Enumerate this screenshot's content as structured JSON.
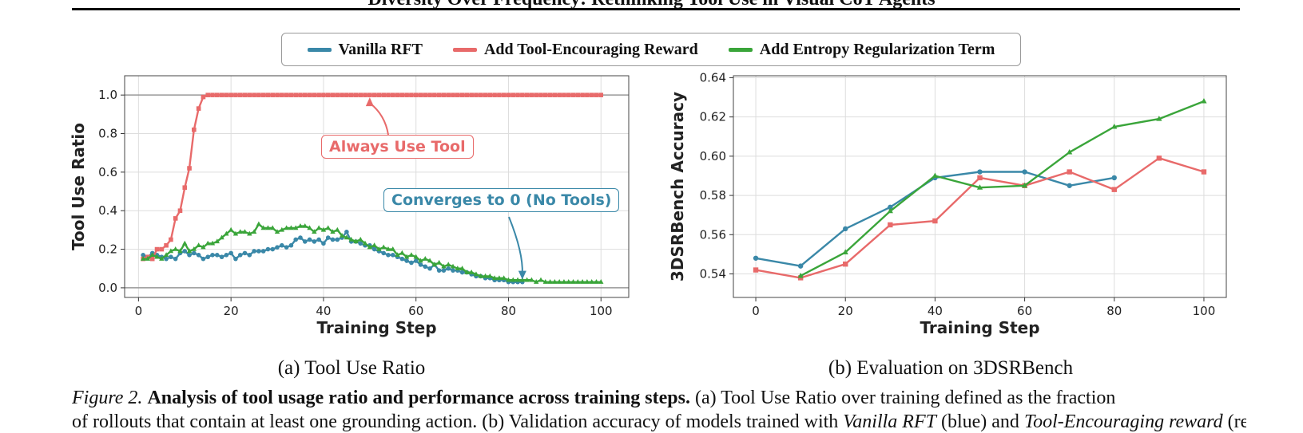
{
  "header": {
    "title": "Diversity Over Frequency: Rethinking Tool Use in Visual CoT Agents"
  },
  "legend": {
    "items": [
      {
        "label": "Vanilla RFT",
        "color": "#3a88a8"
      },
      {
        "label": "Add Tool-Encouraging Reward",
        "color": "#e86a6a"
      },
      {
        "label": "Add Entropy Regularization Term",
        "color": "#3aa53a"
      }
    ]
  },
  "chart_data": [
    {
      "type": "line",
      "subcaption": "(a) Tool Use Ratio",
      "xlabel": "Training Step",
      "ylabel": "Tool Use Ratio",
      "xlim": [
        -3,
        106
      ],
      "ylim": [
        -0.05,
        1.1
      ],
      "xticks": [
        0,
        20,
        40,
        60,
        80,
        100
      ],
      "yticks": [
        "0.0",
        "0.2",
        "0.4",
        "0.6",
        "0.8",
        "1.0"
      ],
      "grid": true,
      "annotations": [
        {
          "text": "Always Use Tool",
          "color": "#e86a6a",
          "arrow_to": [
            50,
            1.0
          ]
        },
        {
          "text": "Converges to 0 (No Tools)",
          "color": "#3a88a8",
          "arrow_to": [
            83,
            0.03
          ]
        }
      ],
      "series": [
        {
          "name": "Vanilla RFT",
          "color": "#3a88a8",
          "marker": "circle",
          "x": [
            1,
            2,
            3,
            4,
            5,
            6,
            7,
            8,
            9,
            10,
            11,
            12,
            13,
            14,
            15,
            16,
            17,
            18,
            19,
            20,
            21,
            22,
            23,
            24,
            25,
            26,
            27,
            28,
            29,
            30,
            31,
            32,
            33,
            34,
            35,
            36,
            37,
            38,
            39,
            40,
            41,
            42,
            43,
            44,
            45,
            46,
            47,
            48,
            49,
            50,
            51,
            52,
            53,
            54,
            55,
            56,
            57,
            58,
            59,
            60,
            61,
            62,
            63,
            64,
            65,
            66,
            67,
            68,
            69,
            70,
            71,
            72,
            73,
            74,
            75,
            76,
            77,
            78,
            79,
            80,
            81,
            82,
            83
          ],
          "y": [
            0.17,
            0.16,
            0.18,
            0.17,
            0.16,
            0.15,
            0.16,
            0.15,
            0.18,
            0.19,
            0.17,
            0.18,
            0.17,
            0.15,
            0.16,
            0.17,
            0.17,
            0.16,
            0.17,
            0.18,
            0.15,
            0.17,
            0.18,
            0.17,
            0.19,
            0.19,
            0.19,
            0.2,
            0.2,
            0.21,
            0.22,
            0.21,
            0.22,
            0.25,
            0.26,
            0.24,
            0.25,
            0.24,
            0.25,
            0.23,
            0.26,
            0.25,
            0.25,
            0.26,
            0.29,
            0.24,
            0.24,
            0.23,
            0.22,
            0.22,
            0.2,
            0.19,
            0.18,
            0.17,
            0.17,
            0.16,
            0.15,
            0.14,
            0.13,
            0.14,
            0.12,
            0.11,
            0.1,
            0.12,
            0.09,
            0.09,
            0.1,
            0.09,
            0.09,
            0.08,
            0.08,
            0.07,
            0.06,
            0.06,
            0.05,
            0.05,
            0.04,
            0.04,
            0.04,
            0.03,
            0.03,
            0.03,
            0.03
          ]
        },
        {
          "name": "Add Tool-Encouraging Reward",
          "color": "#e86a6a",
          "marker": "square",
          "x": [
            1,
            2,
            3,
            4,
            5,
            6,
            7,
            8,
            9,
            10,
            11,
            12,
            13,
            14,
            15,
            16,
            17,
            18,
            19,
            20,
            21,
            22,
            23,
            24,
            25,
            26,
            27,
            28,
            29,
            30,
            31,
            32,
            33,
            34,
            35,
            36,
            37,
            38,
            39,
            40,
            41,
            42,
            43,
            44,
            45,
            46,
            47,
            48,
            49,
            50,
            51,
            52,
            53,
            54,
            55,
            56,
            57,
            58,
            59,
            60,
            61,
            62,
            63,
            64,
            65,
            66,
            67,
            68,
            69,
            70,
            71,
            72,
            73,
            74,
            75,
            76,
            77,
            78,
            79,
            80,
            81,
            82,
            83,
            84,
            85,
            86,
            87,
            88,
            89,
            90,
            91,
            92,
            93,
            94,
            95,
            96,
            97,
            98,
            99,
            100
          ],
          "y": [
            0.15,
            0.16,
            0.15,
            0.2,
            0.2,
            0.22,
            0.25,
            0.36,
            0.4,
            0.52,
            0.62,
            0.82,
            0.93,
            0.99,
            1.0,
            1.0,
            1.0,
            1.0,
            1.0,
            1.0,
            1.0,
            1.0,
            1.0,
            1.0,
            1.0,
            1.0,
            1.0,
            1.0,
            1.0,
            1.0,
            1.0,
            1.0,
            1.0,
            1.0,
            1.0,
            1.0,
            1.0,
            1.0,
            1.0,
            1.0,
            1.0,
            1.0,
            1.0,
            1.0,
            1.0,
            1.0,
            1.0,
            1.0,
            1.0,
            1.0,
            1.0,
            1.0,
            1.0,
            1.0,
            1.0,
            1.0,
            1.0,
            1.0,
            1.0,
            1.0,
            1.0,
            1.0,
            1.0,
            1.0,
            1.0,
            1.0,
            1.0,
            1.0,
            1.0,
            1.0,
            1.0,
            1.0,
            1.0,
            1.0,
            1.0,
            1.0,
            1.0,
            1.0,
            1.0,
            1.0,
            1.0,
            1.0,
            1.0,
            1.0,
            1.0,
            1.0,
            1.0,
            1.0,
            1.0,
            1.0,
            1.0,
            1.0,
            1.0,
            1.0,
            1.0,
            1.0,
            1.0,
            1.0,
            1.0,
            1.0
          ]
        },
        {
          "name": "Add Entropy Regularization Term",
          "color": "#3aa53a",
          "marker": "triangle",
          "x": [
            1,
            2,
            3,
            4,
            5,
            6,
            7,
            8,
            9,
            10,
            11,
            12,
            13,
            14,
            15,
            16,
            17,
            18,
            19,
            20,
            21,
            22,
            23,
            24,
            25,
            26,
            27,
            28,
            29,
            30,
            31,
            32,
            33,
            34,
            35,
            36,
            37,
            38,
            39,
            40,
            41,
            42,
            43,
            44,
            45,
            46,
            47,
            48,
            49,
            50,
            51,
            52,
            53,
            54,
            55,
            56,
            57,
            58,
            59,
            60,
            61,
            62,
            63,
            64,
            65,
            66,
            67,
            68,
            69,
            70,
            71,
            72,
            73,
            74,
            75,
            76,
            77,
            78,
            79,
            80,
            81,
            82,
            83,
            84,
            85,
            86,
            87,
            88,
            89,
            90,
            91,
            92,
            93,
            94,
            95,
            96,
            97,
            98,
            99,
            100
          ],
          "y": [
            0.15,
            0.15,
            0.17,
            0.16,
            0.15,
            0.17,
            0.19,
            0.2,
            0.19,
            0.23,
            0.19,
            0.2,
            0.22,
            0.21,
            0.23,
            0.23,
            0.24,
            0.26,
            0.28,
            0.3,
            0.28,
            0.29,
            0.29,
            0.28,
            0.29,
            0.33,
            0.31,
            0.31,
            0.31,
            0.29,
            0.3,
            0.31,
            0.31,
            0.31,
            0.32,
            0.32,
            0.31,
            0.29,
            0.31,
            0.3,
            0.31,
            0.29,
            0.3,
            0.27,
            0.26,
            0.25,
            0.24,
            0.25,
            0.23,
            0.21,
            0.22,
            0.2,
            0.21,
            0.2,
            0.2,
            0.17,
            0.18,
            0.16,
            0.17,
            0.16,
            0.14,
            0.15,
            0.14,
            0.12,
            0.13,
            0.11,
            0.12,
            0.11,
            0.1,
            0.1,
            0.08,
            0.08,
            0.07,
            0.06,
            0.06,
            0.06,
            0.05,
            0.05,
            0.05,
            0.04,
            0.04,
            0.04,
            0.04,
            0.04,
            0.04,
            0.03,
            0.04,
            0.03,
            0.03,
            0.03,
            0.03,
            0.03,
            0.03,
            0.03,
            0.03,
            0.03,
            0.03,
            0.03,
            0.03,
            0.03
          ]
        }
      ]
    },
    {
      "type": "line",
      "subcaption": "(b) Evaluation on 3DSRBench",
      "xlabel": "Training Step",
      "ylabel": "3DSRBench Accuracy",
      "xlim": [
        -5,
        105
      ],
      "ylim": [
        0.528,
        0.641
      ],
      "xticks": [
        0,
        20,
        40,
        60,
        80,
        100
      ],
      "yticks": [
        "0.54",
        "0.56",
        "0.58",
        "0.60",
        "0.62",
        "0.64"
      ],
      "grid": true,
      "series": [
        {
          "name": "Vanilla RFT",
          "color": "#3a88a8",
          "marker": "circle",
          "x": [
            0,
            10,
            20,
            30,
            40,
            50,
            60,
            70,
            80
          ],
          "y": [
            0.548,
            0.544,
            0.563,
            0.574,
            0.589,
            0.592,
            0.592,
            0.585,
            0.589
          ]
        },
        {
          "name": "Add Tool-Encouraging Reward",
          "color": "#e86a6a",
          "marker": "square",
          "x": [
            0,
            10,
            20,
            30,
            40,
            50,
            60,
            70,
            80,
            90,
            100
          ],
          "y": [
            0.542,
            0.538,
            0.545,
            0.565,
            0.567,
            0.589,
            0.585,
            0.592,
            0.583,
            0.599,
            0.592
          ]
        },
        {
          "name": "Add Entropy Regularization Term",
          "color": "#3aa53a",
          "marker": "triangle",
          "x": [
            10,
            20,
            30,
            40,
            50,
            60,
            70,
            80,
            90,
            100
          ],
          "y": [
            0.539,
            0.551,
            0.572,
            0.59,
            0.584,
            0.585,
            0.602,
            0.615,
            0.619,
            0.628
          ]
        }
      ]
    }
  ],
  "figure_caption": {
    "label": "Figure 2.",
    "bold": "Analysis of tool usage ratio and performance across training steps.",
    "rest": "(a) Tool Use Ratio over training defined as the fraction",
    "line2_a": "of rollouts that contain at least one grounding action. (b) Validation accuracy of models trained with",
    "line2_b": "Vanilla RFT",
    "line2_c": "(blue) and",
    "line2_d": "Tool-Encouraging reward",
    "line2_e": "(red)."
  }
}
